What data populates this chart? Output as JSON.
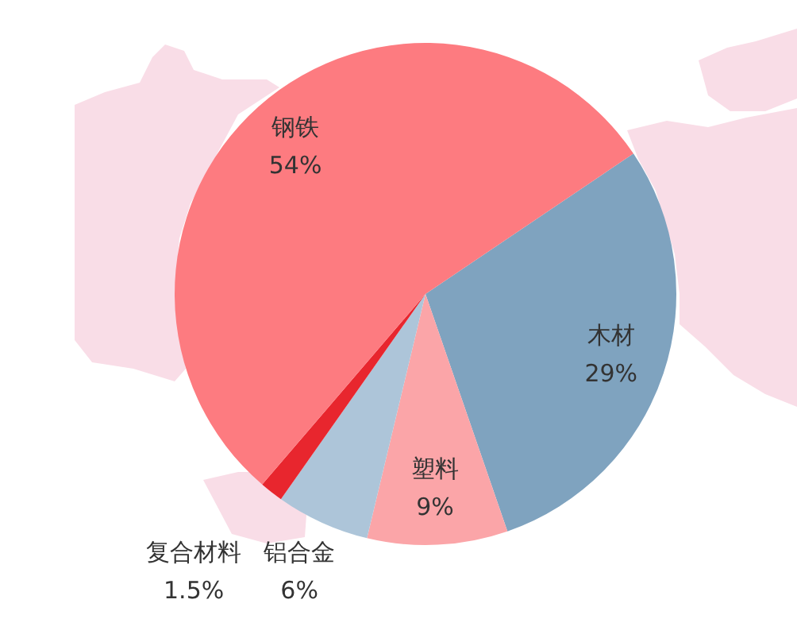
{
  "chart_data": {
    "type": "pie",
    "categories": [
      "木材",
      "塑料",
      "铝合金",
      "复合材料",
      "钢铁"
    ],
    "values": [
      29,
      9,
      6,
      1.5,
      54
    ],
    "colors": [
      "#7fa3bf",
      "#fba5a8",
      "#adc5d9",
      "#e8262e",
      "#fd7b80"
    ],
    "value_labels": [
      "29%",
      "9%",
      "6%",
      "1.5%",
      "54%"
    ]
  }
}
